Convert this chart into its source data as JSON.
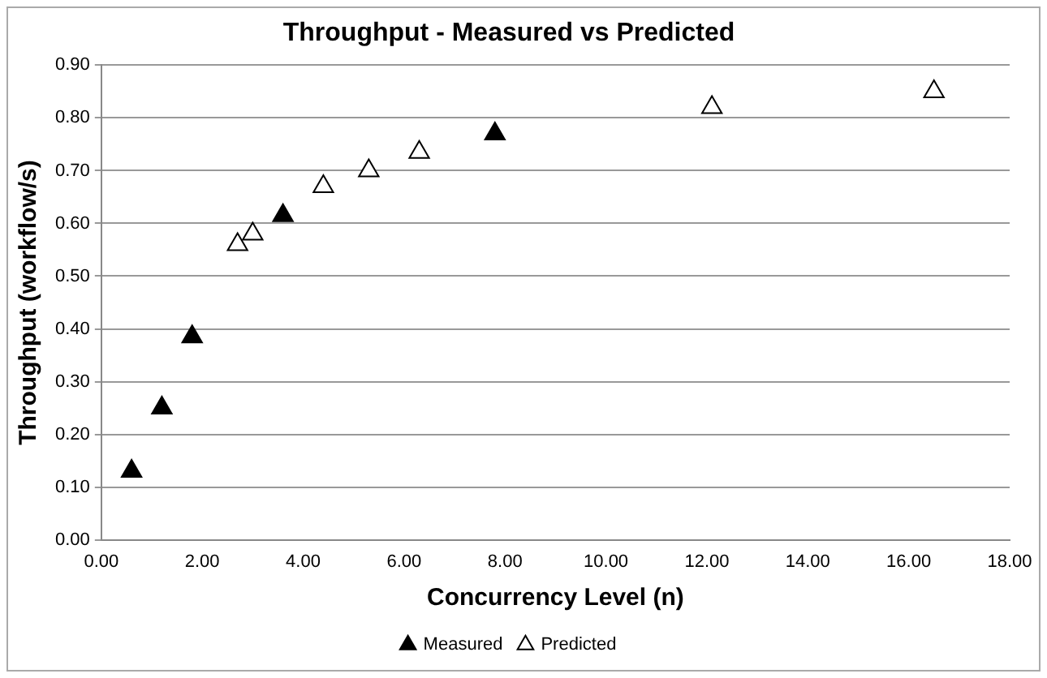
{
  "chart_data": {
    "type": "scatter",
    "title": "Throughput - Measured vs Predicted",
    "xlabel": "Concurrency Level (n)",
    "ylabel": "Throughput (workflow/s)",
    "xlim": [
      0,
      18
    ],
    "xticks": [
      {
        "value": 0,
        "label": "0.00"
      },
      {
        "value": 2,
        "label": "2.00"
      },
      {
        "value": 4,
        "label": "4.00"
      },
      {
        "value": 6,
        "label": "6.00"
      },
      {
        "value": 8,
        "label": "8.00"
      },
      {
        "value": 10,
        "label": "10.00"
      },
      {
        "value": 12,
        "label": "12.00"
      },
      {
        "value": 14,
        "label": "14.00"
      },
      {
        "value": 16,
        "label": "16.00"
      },
      {
        "value": 18,
        "label": "18.00"
      }
    ],
    "ylim": [
      0,
      0.9
    ],
    "yticks": [
      {
        "value": 0,
        "label": "0.00"
      },
      {
        "value": 0.1,
        "label": "0.10"
      },
      {
        "value": 0.2,
        "label": "0.20"
      },
      {
        "value": 0.3,
        "label": "0.30"
      },
      {
        "value": 0.4,
        "label": "0.40"
      },
      {
        "value": 0.5,
        "label": "0.50"
      },
      {
        "value": 0.6,
        "label": "0.60"
      },
      {
        "value": 0.7,
        "label": "0.70"
      },
      {
        "value": 0.8,
        "label": "0.80"
      },
      {
        "value": 0.9,
        "label": "0.90"
      }
    ],
    "grid": "y",
    "legend": "bottom",
    "marker": "triangle",
    "series": [
      {
        "name": "Measured",
        "color": "#000000",
        "x": [
          0.6,
          1.2,
          1.8,
          3.6,
          7.8
        ],
        "values": [
          0.13,
          0.25,
          0.385,
          0.615,
          0.77
        ]
      },
      {
        "name": "Predicted",
        "color": "#ffffff",
        "x": [
          2.7,
          3.0,
          4.4,
          5.3,
          6.3,
          12.1,
          16.5
        ],
        "values": [
          0.56,
          0.58,
          0.67,
          0.7,
          0.735,
          0.82,
          0.85
        ]
      }
    ]
  }
}
